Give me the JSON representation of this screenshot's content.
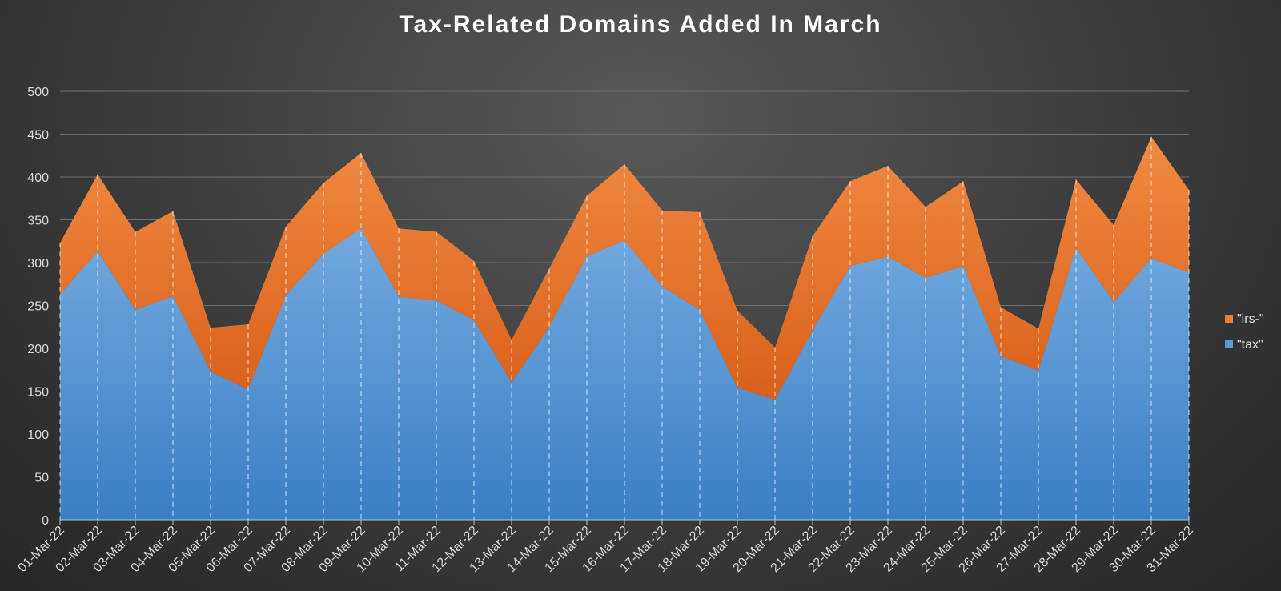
{
  "chart_data": {
    "type": "area",
    "stacked": true,
    "title": "Tax-Related Domains Added In March",
    "xlabel": "",
    "ylabel": "",
    "ylim": [
      0,
      500
    ],
    "yticks": [
      0,
      50,
      100,
      150,
      200,
      250,
      300,
      350,
      400,
      450,
      500
    ],
    "grid": true,
    "legend_position": "right",
    "categories": [
      "01-Mar-22",
      "02-Mar-22",
      "03-Mar-22",
      "04-Mar-22",
      "05-Mar-22",
      "06-Mar-22",
      "07-Mar-22",
      "08-Mar-22",
      "09-Mar-22",
      "10-Mar-22",
      "11-Mar-22",
      "12-Mar-22",
      "13-Mar-22",
      "14-Mar-22",
      "15-Mar-22",
      "16-Mar-22",
      "17-Mar-22",
      "18-Mar-22",
      "19-Mar-22",
      "20-Mar-22",
      "21-Mar-22",
      "22-Mar-22",
      "23-Mar-22",
      "24-Mar-22",
      "25-Mar-22",
      "26-Mar-22",
      "27-Mar-22",
      "28-Mar-22",
      "29-Mar-22",
      "30-Mar-22",
      "31-Mar-22"
    ],
    "series": [
      {
        "name": "\"tax\"",
        "color": "#5b9bd5",
        "values": [
          263,
          313,
          245,
          261,
          173,
          152,
          262,
          310,
          340,
          260,
          256,
          233,
          160,
          225,
          307,
          326,
          272,
          245,
          154,
          140,
          221,
          296,
          307,
          282,
          296,
          191,
          174,
          317,
          254,
          305,
          288
        ]
      },
      {
        "name": "\"irs-\"",
        "color": "#ed7d31",
        "values": [
          60,
          90,
          91,
          99,
          51,
          76,
          80,
          83,
          88,
          80,
          80,
          69,
          50,
          68,
          71,
          89,
          89,
          114,
          90,
          61,
          110,
          99,
          106,
          83,
          99,
          57,
          49,
          80,
          90,
          142,
          97
        ]
      }
    ],
    "legend": [
      {
        "label": "\"irs-\"",
        "color": "#ed7d31"
      },
      {
        "label": "\"tax\"",
        "color": "#5b9bd5"
      }
    ]
  }
}
